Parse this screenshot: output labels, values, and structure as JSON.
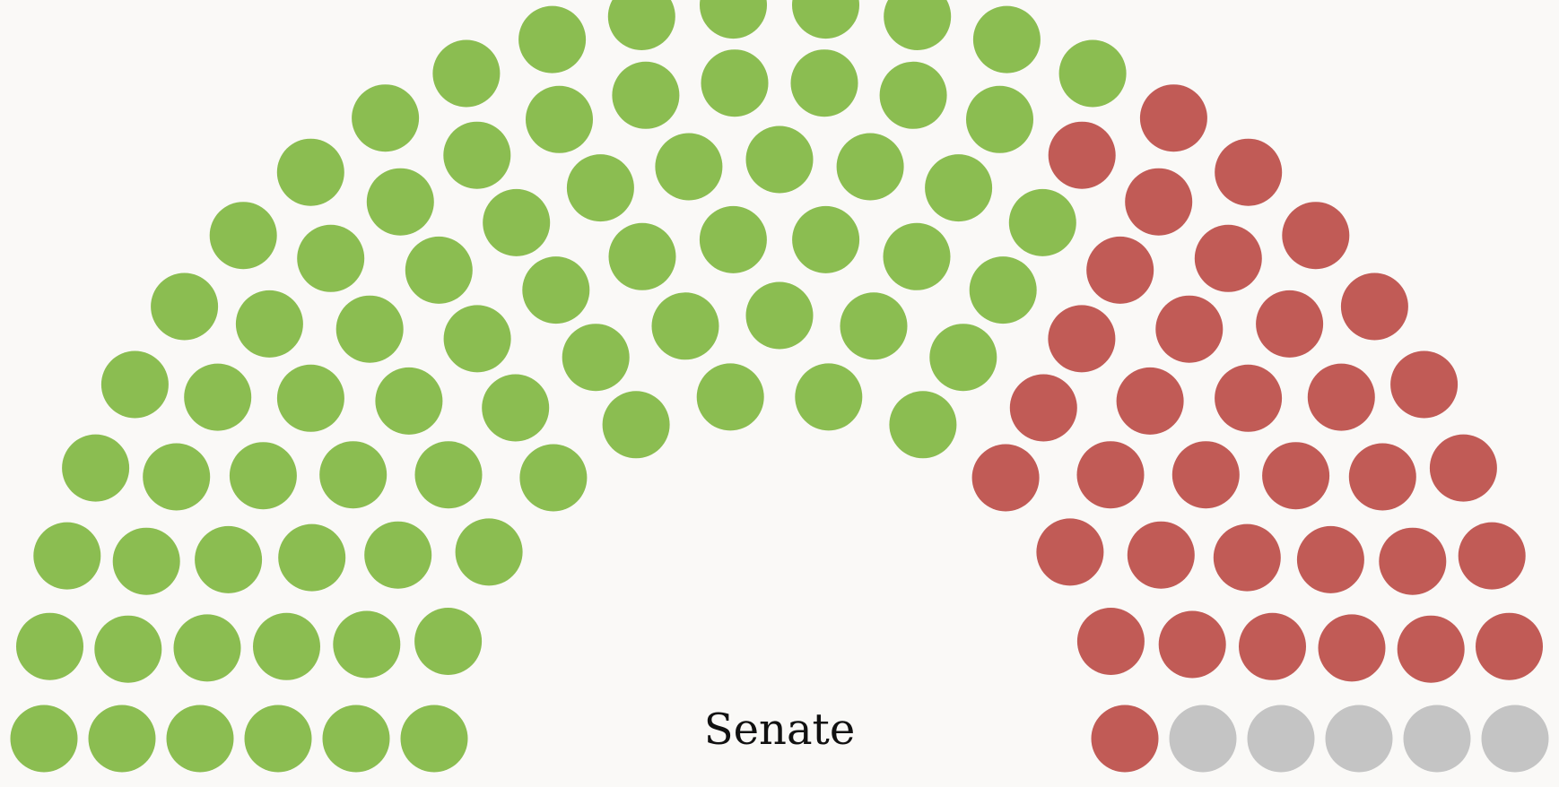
{
  "chamber": {
    "title": "Senate"
  },
  "chart_data": {
    "type": "parliament",
    "total_seats": 116,
    "colors": {
      "green": "#8bbd51",
      "red": "#c15b56",
      "gray": "#c4c4c4"
    },
    "groups": [
      {
        "color_key": "green",
        "seats": 76
      },
      {
        "color_key": "red",
        "seats": 35
      },
      {
        "color_key": "gray",
        "seats": 5
      }
    ]
  }
}
